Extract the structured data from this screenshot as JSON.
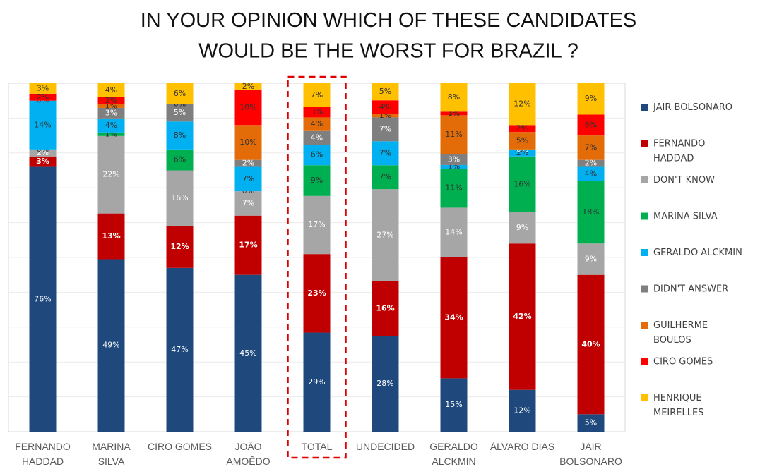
{
  "chart_data": {
    "type": "stacked_bar",
    "stacking": "percent",
    "title": "IN YOUR OPINION WHICH OF THESE CANDIDATES\nWOULD BE THE WORST FOR BRAZIL ?",
    "categories": [
      "FERNANDO\nHADDAD",
      "MARINA\nSILVA",
      "CIRO GOMES",
      "JOÃO\nAMOÊDO",
      "TOTAL",
      "UNDECIDED",
      "GERALDO\nALCKMIN",
      "ÁLVARO DIAS",
      "JAIR\nBOLSONARO"
    ],
    "highlight_category": "TOTAL",
    "ylim": [
      0,
      100
    ],
    "series": [
      {
        "name": "JAIR BOLSONARO",
        "color": "#1f497d",
        "values": [
          76,
          49,
          47,
          45,
          29,
          28,
          15,
          12,
          5
        ],
        "value_labels": [
          "76%",
          "49%",
          "47%",
          "45%",
          "29%",
          "28%",
          "15%",
          "12%",
          "5%"
        ]
      },
      {
        "name": "FERNANDO\nHADDAD",
        "color": "#c00000",
        "values": [
          3,
          13,
          12,
          17,
          23,
          16,
          34,
          42,
          40
        ],
        "value_labels": [
          "3%",
          "13%",
          "12%",
          "17%",
          "23%",
          "16%",
          "34%",
          "42%",
          "40%"
        ]
      },
      {
        "name": "DON'T KNOW",
        "color": "#a6a6a6",
        "values": [
          2,
          22,
          16,
          7,
          17,
          27,
          14,
          9,
          9
        ],
        "value_labels": [
          "2%",
          "22%",
          "16%",
          "7%",
          "17%",
          "27%",
          "14%",
          "9%",
          "9%"
        ]
      },
      {
        "name": "MARINA SILVA",
        "color": "#00b050",
        "values": [
          0,
          1,
          6,
          0,
          9,
          7,
          11,
          16,
          18
        ],
        "value_labels": [
          "0%",
          "1%",
          "6%",
          "0%",
          "9%",
          "7%",
          "11%",
          "16%",
          "18%"
        ]
      },
      {
        "name": "GERALDO ALCKMIN",
        "color": "#00b0f0",
        "values": [
          14,
          4,
          8,
          7,
          6,
          7,
          1,
          2,
          4
        ],
        "value_labels": [
          "14%",
          "4%",
          "8%",
          "7%",
          "6%",
          "7%",
          "1%",
          "2%",
          "4%"
        ]
      },
      {
        "name": "DIDN'T ANSWER",
        "color": "#7f7f7f",
        "values": [
          0,
          3,
          5,
          2,
          4,
          7,
          3,
          0,
          2
        ],
        "value_labels": [
          "0%",
          "3%",
          "5%",
          "2%",
          "4%",
          "7%",
          "3%",
          "0%",
          "2%"
        ]
      },
      {
        "name": "GUILHERME\nBOULOS",
        "color": "#e36c09",
        "values": [
          0,
          1,
          0,
          10,
          4,
          1,
          11,
          5,
          7
        ],
        "value_labels": [
          "0%",
          "1%",
          "0%",
          "10%",
          "4%",
          "1%",
          "11%",
          "5%",
          "7%"
        ]
      },
      {
        "name": "CIRO GOMES",
        "color": "#ff0000",
        "values": [
          2,
          2,
          0,
          10,
          3,
          4,
          1,
          2,
          6
        ],
        "value_labels": [
          "2%",
          "2%",
          "0%",
          "10%",
          "3%",
          "4%",
          "1%",
          "2%",
          "6%"
        ]
      },
      {
        "name": "HENRIQUE\nMEIRELLES",
        "color": "#ffc000",
        "values": [
          3,
          4,
          6,
          2,
          7,
          5,
          8,
          12,
          9
        ],
        "value_labels": [
          "3%",
          "4%",
          "6%",
          "2%",
          "7%",
          "5%",
          "8%",
          "12%",
          "9%"
        ]
      }
    ]
  }
}
